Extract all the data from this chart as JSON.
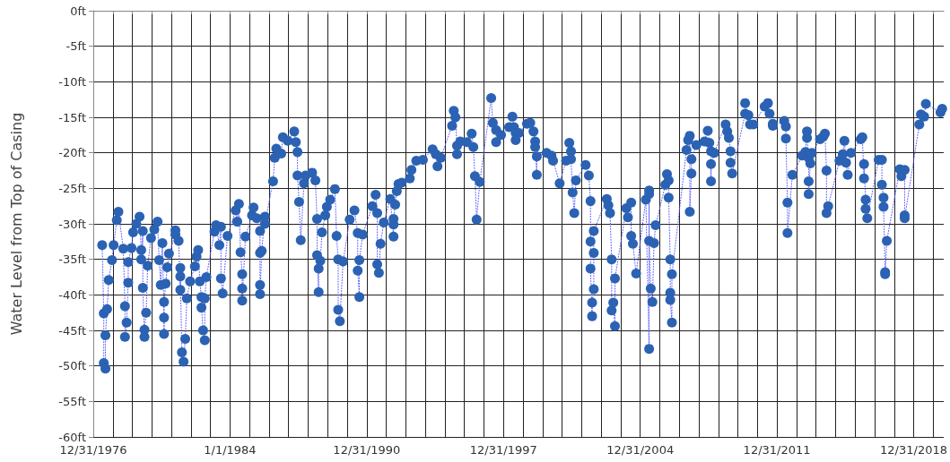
{
  "chart_data": {
    "type": "line",
    "ylabel": "Water Level from Top of Casing",
    "marker": "circle",
    "line_style": "dotted",
    "grid": true,
    "xlim": [
      "1976-12-31",
      "2020-07-15"
    ],
    "xticks": [
      {
        "value": "1976-12-31",
        "label": "12/31/1976"
      },
      {
        "value": "1977-12-31",
        "label": null
      },
      {
        "value": "1978-12-31",
        "label": null
      },
      {
        "value": "1979-12-31",
        "label": null
      },
      {
        "value": "1980-12-31",
        "label": null
      },
      {
        "value": "1981-12-31",
        "label": null
      },
      {
        "value": "1982-12-31",
        "label": null
      },
      {
        "value": "1984-01-01",
        "label": "1/1/1984"
      },
      {
        "value": "1984-12-31",
        "label": null
      },
      {
        "value": "1985-12-31",
        "label": null
      },
      {
        "value": "1986-12-31",
        "label": null
      },
      {
        "value": "1987-12-31",
        "label": null
      },
      {
        "value": "1988-12-31",
        "label": null
      },
      {
        "value": "1989-12-31",
        "label": null
      },
      {
        "value": "1990-12-31",
        "label": "12/31/1990"
      },
      {
        "value": "1991-12-31",
        "label": null
      },
      {
        "value": "1992-12-31",
        "label": null
      },
      {
        "value": "1993-12-31",
        "label": null
      },
      {
        "value": "1994-12-31",
        "label": null
      },
      {
        "value": "1995-12-31",
        "label": null
      },
      {
        "value": "1996-12-31",
        "label": null
      },
      {
        "value": "1997-12-31",
        "label": "12/31/1997"
      },
      {
        "value": "1998-12-31",
        "label": null
      },
      {
        "value": "1999-12-31",
        "label": null
      },
      {
        "value": "2000-12-31",
        "label": null
      },
      {
        "value": "2001-12-31",
        "label": null
      },
      {
        "value": "2002-12-31",
        "label": null
      },
      {
        "value": "2003-12-31",
        "label": null
      },
      {
        "value": "2004-12-31",
        "label": "12/31/2004"
      },
      {
        "value": "2005-12-31",
        "label": null
      },
      {
        "value": "2006-12-31",
        "label": null
      },
      {
        "value": "2007-12-31",
        "label": null
      },
      {
        "value": "2008-12-31",
        "label": null
      },
      {
        "value": "2009-12-31",
        "label": null
      },
      {
        "value": "2010-12-31",
        "label": null
      },
      {
        "value": "2011-12-31",
        "label": "12/31/2011"
      },
      {
        "value": "2012-12-31",
        "label": null
      },
      {
        "value": "2013-12-31",
        "label": null
      },
      {
        "value": "2014-12-31",
        "label": null
      },
      {
        "value": "2015-12-31",
        "label": null
      },
      {
        "value": "2016-12-31",
        "label": null
      },
      {
        "value": "2017-12-31",
        "label": null
      },
      {
        "value": "2018-12-31",
        "label": "12/31/2018"
      },
      {
        "value": "2019-12-31",
        "label": null
      }
    ],
    "ylim": [
      -60,
      0
    ],
    "yticks": [
      {
        "value": 0,
        "label": "0ft"
      },
      {
        "value": -5,
        "label": "-5ft"
      },
      {
        "value": -10,
        "label": "-10ft"
      },
      {
        "value": -15,
        "label": "-15ft"
      },
      {
        "value": -20,
        "label": "-20ft"
      },
      {
        "value": -25,
        "label": "-25ft"
      },
      {
        "value": -30,
        "label": "-30ft"
      },
      {
        "value": -35,
        "label": "-35ft"
      },
      {
        "value": -40,
        "label": "-40ft"
      },
      {
        "value": -45,
        "label": "-45ft"
      },
      {
        "value": -50,
        "label": "-50ft"
      },
      {
        "value": -55,
        "label": "-55ft"
      },
      {
        "value": -60,
        "label": "-60ft"
      }
    ],
    "x": [
      "1977-06",
      "1977-07",
      "1977-07",
      "1977-08",
      "1977-08",
      "1977-09",
      "1977-10",
      "1977-12",
      "1978-01",
      "1978-03",
      "1978-04",
      "1978-07",
      "1978-08",
      "1978-08",
      "1978-09",
      "1978-10",
      "1978-10",
      "1978-12",
      "1979-01",
      "1979-03",
      "1979-05",
      "1979-06",
      "1979-06",
      "1979-07",
      "1979-07",
      "1979-08",
      "1979-08",
      "1979-09",
      "1979-10",
      "1979-12",
      "1980-02",
      "1980-04",
      "1980-05",
      "1980-06",
      "1980-07",
      "1980-08",
      "1980-08",
      "1980-08",
      "1980-09",
      "1980-10",
      "1980-11",
      "1981-03",
      "1981-03",
      "1981-05",
      "1981-06",
      "1981-06",
      "1981-06",
      "1981-07",
      "1981-08",
      "1981-09",
      "1981-10",
      "1981-12",
      "1982-03",
      "1982-04",
      "1982-05",
      "1982-06",
      "1982-07",
      "1982-07",
      "1982-08",
      "1982-09",
      "1982-09",
      "1982-10",
      "1983-03",
      "1983-04",
      "1983-06",
      "1983-07",
      "1983-07",
      "1983-08",
      "1983-11",
      "1984-04",
      "1984-05",
      "1984-06",
      "1984-07",
      "1984-08",
      "1984-08",
      "1984-08",
      "1984-10",
      "1985-02",
      "1985-03",
      "1985-05",
      "1985-07",
      "1985-07",
      "1985-07",
      "1985-07",
      "1985-08",
      "1985-10",
      "1985-10",
      "1986-03",
      "1986-04",
      "1986-05",
      "1986-08",
      "1986-09",
      "1986-12",
      "1987-04",
      "1987-05",
      "1987-06",
      "1987-06",
      "1987-07",
      "1987-08",
      "1987-10",
      "1987-11",
      "1988-03",
      "1988-05",
      "1988-06",
      "1988-06",
      "1988-07",
      "1988-07",
      "1988-08",
      "1988-09",
      "1988-11",
      "1988-12",
      "1989-02",
      "1989-05",
      "1989-06",
      "1989-07",
      "1989-07",
      "1989-08",
      "1989-10",
      "1990-02",
      "1990-05",
      "1990-07",
      "1990-07",
      "1990-08",
      "1990-08",
      "1990-10",
      "1991-04",
      "1991-06",
      "1991-07",
      "1991-07",
      "1991-08",
      "1991-09",
      "1991-11",
      "1992-03",
      "1992-05",
      "1992-05",
      "1992-05",
      "1992-06",
      "1992-07",
      "1992-08",
      "1992-10",
      "1993-03",
      "1993-04",
      "1993-07",
      "1993-11",
      "1994-05",
      "1994-07",
      "1994-08",
      "1994-10",
      "1995-05",
      "1995-06",
      "1995-07",
      "1995-08",
      "1995-08",
      "1995-10",
      "1996-02",
      "1996-05",
      "1996-06",
      "1996-07",
      "1996-08",
      "1996-10",
      "1997-05",
      "1997-06",
      "1997-08",
      "1997-08",
      "1997-11",
      "1998-04",
      "1998-06",
      "1998-07",
      "1998-08",
      "1998-08",
      "1998-10",
      "1999-03",
      "1999-05",
      "1999-07",
      "1999-08",
      "1999-08",
      "1999-09",
      "1999-09",
      "2000-03",
      "2000-06",
      "2000-07",
      "2000-11",
      "2001-03",
      "2001-05",
      "2001-06",
      "2001-06",
      "2001-07",
      "2001-08",
      "2001-09",
      "2002-03",
      "2002-05",
      "2002-06",
      "2002-06",
      "2002-06",
      "2002-07",
      "2002-07",
      "2002-08",
      "2002-08",
      "2002-08",
      "2003-04",
      "2003-05",
      "2003-06",
      "2003-07",
      "2003-07",
      "2003-08",
      "2003-09",
      "2003-09",
      "2004-04",
      "2004-05",
      "2004-07",
      "2004-07",
      "2004-08",
      "2004-10",
      "2005-04",
      "2005-06",
      "2005-06",
      "2005-06",
      "2005-06",
      "2005-07",
      "2005-08",
      "2005-09",
      "2005-10",
      "2006-04",
      "2006-05",
      "2006-06",
      "2006-06",
      "2006-07",
      "2006-07",
      "2006-07",
      "2006-08",
      "2006-08",
      "2007-05",
      "2007-06",
      "2007-07",
      "2007-07",
      "2007-08",
      "2007-08",
      "2007-11",
      "2008-04",
      "2008-06",
      "2008-07",
      "2008-08",
      "2008-08",
      "2008-08",
      "2008-10",
      "2009-05",
      "2009-06",
      "2009-07",
      "2009-08",
      "2009-08",
      "2009-09",
      "2010-05",
      "2010-05",
      "2010-07",
      "2010-08",
      "2010-10",
      "2011-05",
      "2011-07",
      "2011-08",
      "2011-10",
      "2011-10",
      "2012-05",
      "2012-06",
      "2012-06",
      "2012-07",
      "2012-07",
      "2012-10",
      "2013-04",
      "2013-06",
      "2013-07",
      "2013-07",
      "2013-08",
      "2013-08",
      "2013-08",
      "2013-09",
      "2013-10",
      "2014-03",
      "2014-05",
      "2014-06",
      "2014-07",
      "2014-07",
      "2014-08",
      "2015-03",
      "2015-05",
      "2015-06",
      "2015-07",
      "2015-08",
      "2015-10",
      "2016-04",
      "2016-05",
      "2016-06",
      "2016-06",
      "2016-07",
      "2016-07",
      "2016-08",
      "2017-03",
      "2017-05",
      "2017-05",
      "2017-06",
      "2017-06",
      "2017-07",
      "2017-07",
      "2017-08",
      "2018-04",
      "2018-05",
      "2018-07",
      "2018-07",
      "2018-07",
      "2019-04",
      "2019-05",
      "2019-07",
      "2019-08",
      "2020-05",
      "2020-06"
    ],
    "series": [
      {
        "color": "#2b62b3",
        "values": [
          -33.0,
          -42.6,
          -49.6,
          -50.4,
          -45.7,
          -42.0,
          -37.9,
          -35.1,
          -33.0,
          -29.5,
          -28.3,
          -33.5,
          -41.6,
          -45.9,
          -43.9,
          -38.3,
          -35.4,
          -33.4,
          -31.2,
          -30.0,
          -29.0,
          -33.7,
          -35.0,
          -31.0,
          -39.0,
          -45.9,
          -44.9,
          -42.5,
          -35.9,
          -32.0,
          -30.8,
          -29.7,
          -35.1,
          -38.6,
          -32.7,
          -43.2,
          -45.5,
          -41.0,
          -38.4,
          -36.1,
          -34.2,
          -31.5,
          -30.9,
          -32.4,
          -39.3,
          -36.2,
          -37.4,
          -48.1,
          -49.4,
          -46.2,
          -40.5,
          -38.1,
          -36.0,
          -34.6,
          -33.7,
          -38.1,
          -40.3,
          -41.8,
          -45.0,
          -46.4,
          -40.5,
          -37.5,
          -31.1,
          -30.2,
          -33.0,
          -30.4,
          -37.7,
          -39.8,
          -31.7,
          -28.1,
          -29.7,
          -27.2,
          -34.0,
          -37.1,
          -39.1,
          -40.8,
          -31.8,
          -28.8,
          -27.7,
          -29.2,
          -31.0,
          -34.1,
          -38.6,
          -39.9,
          -33.8,
          -29.0,
          -30.0,
          -24.0,
          -20.7,
          -19.4,
          -20.1,
          -17.8,
          -18.3,
          -17.0,
          -18.5,
          -19.9,
          -23.2,
          -26.9,
          -32.3,
          -24.3,
          -23.2,
          -22.8,
          -23.9,
          -29.3,
          -34.4,
          -39.6,
          -36.3,
          -35.2,
          -31.2,
          -28.8,
          -27.6,
          -26.6,
          -25.1,
          -31.7,
          -35.0,
          -42.1,
          -43.7,
          -35.3,
          -29.4,
          -28.1,
          -31.3,
          -36.6,
          -40.3,
          -35.1,
          -31.5,
          -27.5,
          -25.9,
          -28.5,
          -35.7,
          -36.9,
          -32.8,
          -29.8,
          -26.5,
          -31.8,
          -30.1,
          -29.3,
          -27.3,
          -25.4,
          -24.4,
          -24.2,
          -23.6,
          -22.4,
          -21.1,
          -21.0,
          -19.5,
          -20.2,
          -21.9,
          -20.7,
          -16.2,
          -14.1,
          -15.0,
          -19.0,
          -20.2,
          -18.4,
          -18.5,
          -17.3,
          -19.2,
          -23.3,
          -29.4,
          -24.1,
          -12.3,
          -15.8,
          -16.8,
          -18.5,
          -17.5,
          -16.4,
          -14.9,
          -16.4,
          -17.2,
          -18.2,
          -17.2,
          -15.9,
          -15.8,
          -17.0,
          -18.4,
          -19.2,
          -23.1,
          -20.5,
          -20.0,
          -20.4,
          -21.1,
          -24.3,
          -21.1,
          -18.6,
          -19.8,
          -20.9,
          -25.6,
          -28.5,
          -23.9,
          -21.7,
          -23.2,
          -26.8,
          -32.5,
          -36.3,
          -43.0,
          -41.1,
          -39.2,
          -34.1,
          -31.0,
          -26.5,
          -27.4,
          -28.5,
          -35.0,
          -42.2,
          -41.1,
          -44.4,
          -37.7,
          -27.8,
          -29.1,
          -27.0,
          -31.7,
          -32.8,
          -37.0,
          -26.6,
          -47.6,
          -25.3,
          -25.8,
          -32.4,
          -39.1,
          -41.0,
          -32.7,
          -30.2,
          -24.5,
          -23.0,
          -23.9,
          -26.3,
          -35.0,
          -39.7,
          -40.7,
          -43.9,
          -37.1,
          -19.6,
          -18.2,
          -17.6,
          -28.3,
          -22.9,
          -20.9,
          -18.9,
          -18.4,
          -16.9,
          -18.6,
          -19.8,
          -24.0,
          -21.6,
          -20.0,
          -16.0,
          -17.0,
          -17.9,
          -19.8,
          -21.4,
          -22.9,
          -14.5,
          -13.0,
          -14.7,
          -16.0,
          -16.0,
          -13.5,
          -13.0,
          -14.5,
          -15.9,
          -16.2,
          -15.5,
          -16.3,
          -18.0,
          -27.0,
          -31.3,
          -23.1,
          -20.4,
          -19.9,
          -17.0,
          -17.9,
          -20.7,
          -24.0,
          -25.8,
          -21.5,
          -20.0,
          -18.1,
          -17.7,
          -17.3,
          -22.5,
          -28.5,
          -27.5,
          -21.1,
          -20.2,
          -18.3,
          -21.4,
          -23.1,
          -20.0,
          -18.1,
          -17.8,
          -23.6,
          -21.6,
          -26.6,
          -27.9,
          -29.2,
          -21.0,
          -21.0,
          -24.5,
          -26.3,
          -27.6,
          -36.8,
          -37.1,
          -32.4,
          -22.3,
          -23.3,
          -22.4,
          -28.8,
          -29.2,
          -16.0,
          -14.6,
          -14.9,
          -13.1,
          -14.3,
          -13.8
        ]
      }
    ]
  }
}
